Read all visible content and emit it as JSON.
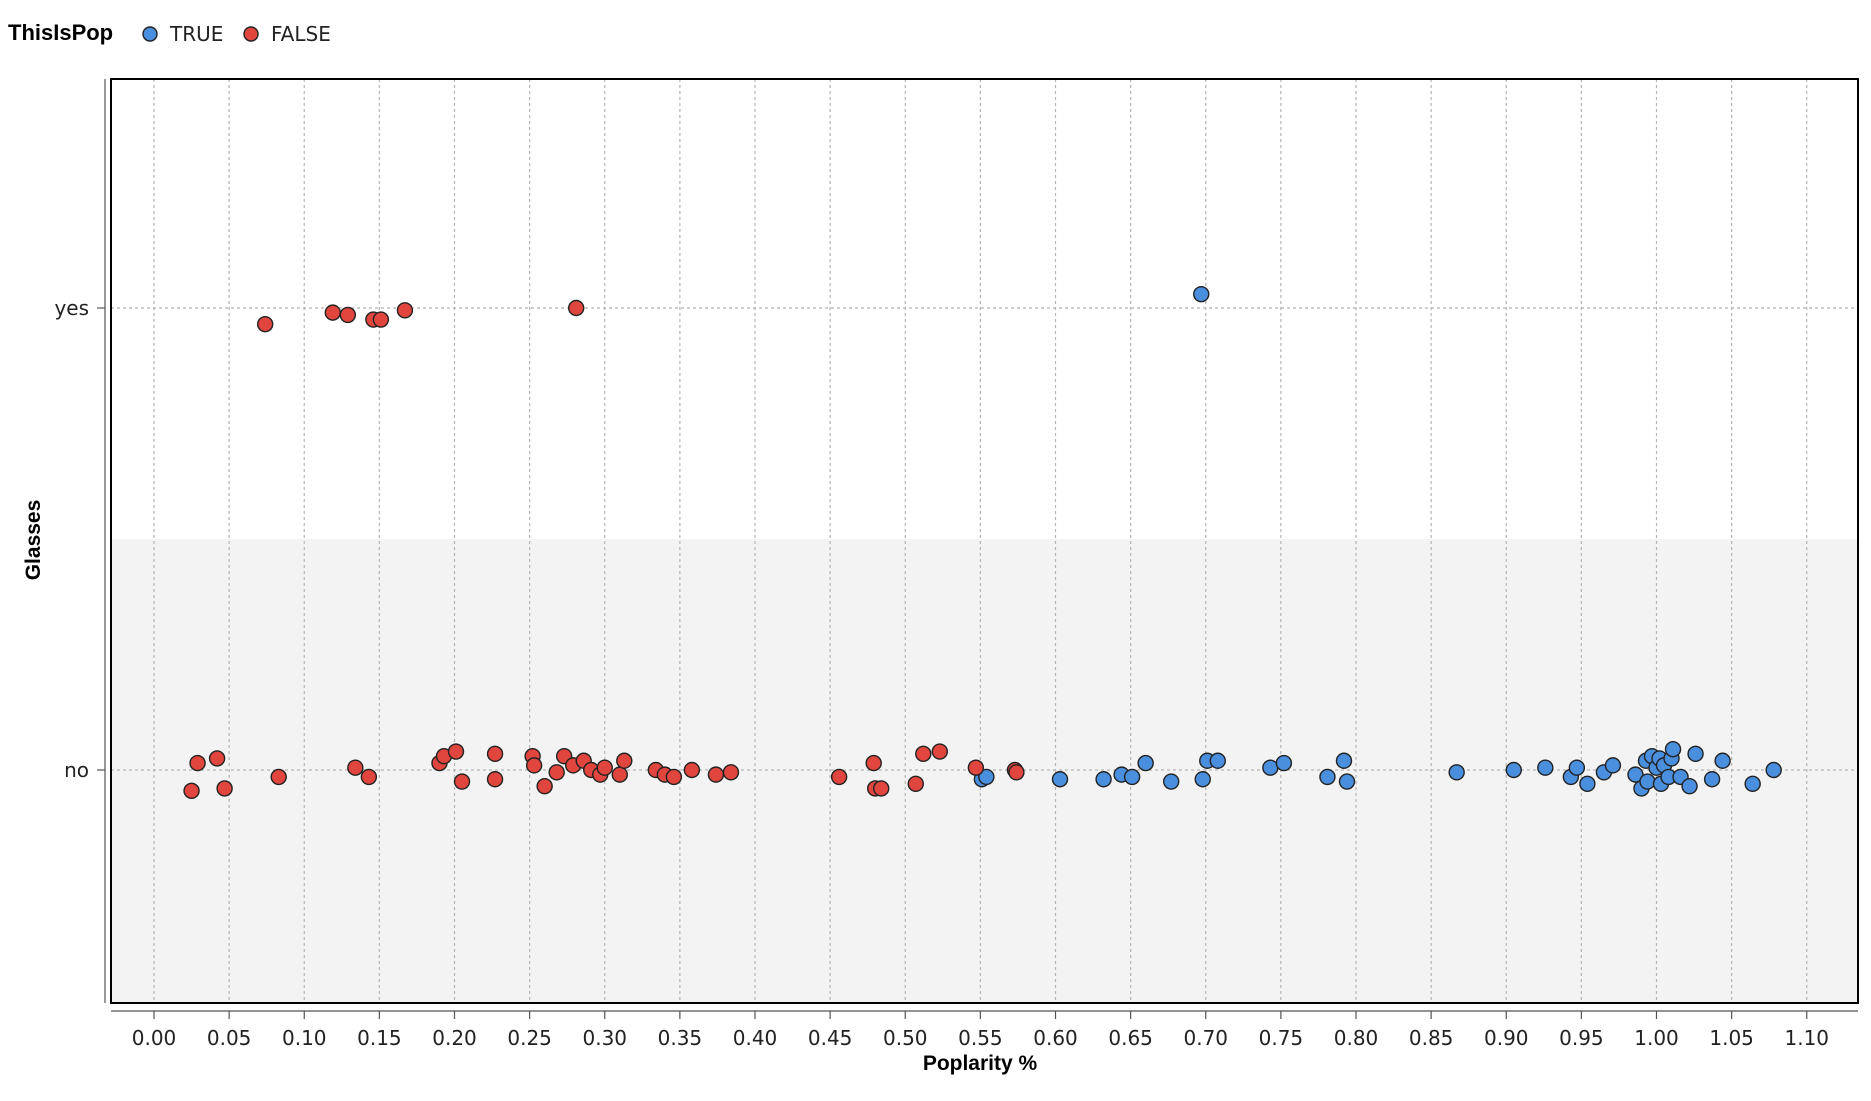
{
  "chart_data": {
    "type": "scatter",
    "title": "",
    "xlabel": "Poplarity %",
    "ylabel": "Glasses",
    "xlim": [
      -0.03,
      1.14
    ],
    "categories_y": [
      "no",
      "yes"
    ],
    "x_ticks": [
      "0.00",
      "0.05",
      "0.10",
      "0.15",
      "0.20",
      "0.25",
      "0.30",
      "0.35",
      "0.40",
      "0.45",
      "0.50",
      "0.55",
      "0.60",
      "0.65",
      "0.70",
      "0.75",
      "0.80",
      "0.85",
      "0.90",
      "0.95",
      "1.00",
      "1.05",
      "1.10"
    ],
    "y_ticks": [
      "yes",
      "no"
    ],
    "grid": true,
    "legend": {
      "title": "ThisIsPop",
      "placement": "top-left",
      "entries": [
        {
          "label": "TRUE",
          "color": "#4a8fde"
        },
        {
          "label": "FALSE",
          "color": "#e0463e"
        }
      ]
    },
    "series": [
      {
        "name": "TRUE",
        "color": "#4a8fde",
        "points": [
          {
            "x": 0.697,
            "y": "yes",
            "jitter": 0.03
          },
          {
            "x": 0.551,
            "y": "no",
            "jitter": -0.02
          },
          {
            "x": 0.554,
            "y": "no",
            "jitter": -0.015
          },
          {
            "x": 0.603,
            "y": "no",
            "jitter": -0.02
          },
          {
            "x": 0.632,
            "y": "no",
            "jitter": -0.02
          },
          {
            "x": 0.644,
            "y": "no",
            "jitter": -0.01
          },
          {
            "x": 0.651,
            "y": "no",
            "jitter": -0.015
          },
          {
            "x": 0.66,
            "y": "no",
            "jitter": 0.015
          },
          {
            "x": 0.677,
            "y": "no",
            "jitter": -0.025
          },
          {
            "x": 0.698,
            "y": "no",
            "jitter": -0.02
          },
          {
            "x": 0.701,
            "y": "no",
            "jitter": 0.02
          },
          {
            "x": 0.708,
            "y": "no",
            "jitter": 0.02
          },
          {
            "x": 0.743,
            "y": "no",
            "jitter": 0.005
          },
          {
            "x": 0.752,
            "y": "no",
            "jitter": 0.015
          },
          {
            "x": 0.781,
            "y": "no",
            "jitter": -0.015
          },
          {
            "x": 0.792,
            "y": "no",
            "jitter": 0.02
          },
          {
            "x": 0.794,
            "y": "no",
            "jitter": -0.025
          },
          {
            "x": 0.867,
            "y": "no",
            "jitter": -0.005
          },
          {
            "x": 0.905,
            "y": "no",
            "jitter": 0.0
          },
          {
            "x": 0.926,
            "y": "no",
            "jitter": 0.005
          },
          {
            "x": 0.943,
            "y": "no",
            "jitter": -0.015
          },
          {
            "x": 0.947,
            "y": "no",
            "jitter": 0.005
          },
          {
            "x": 0.954,
            "y": "no",
            "jitter": -0.03
          },
          {
            "x": 0.965,
            "y": "no",
            "jitter": -0.005
          },
          {
            "x": 0.971,
            "y": "no",
            "jitter": 0.01
          },
          {
            "x": 0.986,
            "y": "no",
            "jitter": -0.01
          },
          {
            "x": 0.99,
            "y": "no",
            "jitter": -0.04
          },
          {
            "x": 0.993,
            "y": "no",
            "jitter": 0.02
          },
          {
            "x": 0.994,
            "y": "no",
            "jitter": -0.025
          },
          {
            "x": 0.997,
            "y": "no",
            "jitter": 0.03
          },
          {
            "x": 1.0,
            "y": "no",
            "jitter": 0.005
          },
          {
            "x": 1.002,
            "y": "no",
            "jitter": 0.025
          },
          {
            "x": 1.003,
            "y": "no",
            "jitter": -0.03
          },
          {
            "x": 1.005,
            "y": "no",
            "jitter": 0.01
          },
          {
            "x": 1.008,
            "y": "no",
            "jitter": -0.015
          },
          {
            "x": 1.01,
            "y": "no",
            "jitter": 0.025
          },
          {
            "x": 1.011,
            "y": "no",
            "jitter": 0.045
          },
          {
            "x": 1.016,
            "y": "no",
            "jitter": -0.015
          },
          {
            "x": 1.022,
            "y": "no",
            "jitter": -0.035
          },
          {
            "x": 1.026,
            "y": "no",
            "jitter": 0.035
          },
          {
            "x": 1.037,
            "y": "no",
            "jitter": -0.02
          },
          {
            "x": 1.044,
            "y": "no",
            "jitter": 0.02
          },
          {
            "x": 1.064,
            "y": "no",
            "jitter": -0.03
          },
          {
            "x": 1.078,
            "y": "no",
            "jitter": 0.0
          }
        ]
      },
      {
        "name": "FALSE",
        "color": "#e0463e",
        "points": [
          {
            "x": 0.074,
            "y": "yes",
            "jitter": -0.035
          },
          {
            "x": 0.119,
            "y": "yes",
            "jitter": -0.01
          },
          {
            "x": 0.129,
            "y": "yes",
            "jitter": -0.015
          },
          {
            "x": 0.146,
            "y": "yes",
            "jitter": -0.025
          },
          {
            "x": 0.151,
            "y": "yes",
            "jitter": -0.025
          },
          {
            "x": 0.167,
            "y": "yes",
            "jitter": -0.005
          },
          {
            "x": 0.281,
            "y": "yes",
            "jitter": 0.0
          },
          {
            "x": 0.025,
            "y": "no",
            "jitter": -0.045
          },
          {
            "x": 0.029,
            "y": "no",
            "jitter": 0.015
          },
          {
            "x": 0.042,
            "y": "no",
            "jitter": 0.025
          },
          {
            "x": 0.047,
            "y": "no",
            "jitter": -0.04
          },
          {
            "x": 0.083,
            "y": "no",
            "jitter": -0.015
          },
          {
            "x": 0.134,
            "y": "no",
            "jitter": 0.005
          },
          {
            "x": 0.143,
            "y": "no",
            "jitter": -0.015
          },
          {
            "x": 0.19,
            "y": "no",
            "jitter": 0.015
          },
          {
            "x": 0.193,
            "y": "no",
            "jitter": 0.03
          },
          {
            "x": 0.201,
            "y": "no",
            "jitter": 0.04
          },
          {
            "x": 0.205,
            "y": "no",
            "jitter": -0.025
          },
          {
            "x": 0.227,
            "y": "no",
            "jitter": 0.035
          },
          {
            "x": 0.227,
            "y": "no",
            "jitter": -0.02
          },
          {
            "x": 0.252,
            "y": "no",
            "jitter": 0.03
          },
          {
            "x": 0.253,
            "y": "no",
            "jitter": 0.01
          },
          {
            "x": 0.26,
            "y": "no",
            "jitter": -0.035
          },
          {
            "x": 0.268,
            "y": "no",
            "jitter": -0.005
          },
          {
            "x": 0.273,
            "y": "no",
            "jitter": 0.03
          },
          {
            "x": 0.279,
            "y": "no",
            "jitter": 0.01
          },
          {
            "x": 0.286,
            "y": "no",
            "jitter": 0.02
          },
          {
            "x": 0.291,
            "y": "no",
            "jitter": 0.0
          },
          {
            "x": 0.297,
            "y": "no",
            "jitter": -0.01
          },
          {
            "x": 0.3,
            "y": "no",
            "jitter": 0.005
          },
          {
            "x": 0.31,
            "y": "no",
            "jitter": -0.01
          },
          {
            "x": 0.313,
            "y": "no",
            "jitter": 0.02
          },
          {
            "x": 0.334,
            "y": "no",
            "jitter": 0.0
          },
          {
            "x": 0.34,
            "y": "no",
            "jitter": -0.01
          },
          {
            "x": 0.346,
            "y": "no",
            "jitter": -0.015
          },
          {
            "x": 0.358,
            "y": "no",
            "jitter": 0.0
          },
          {
            "x": 0.374,
            "y": "no",
            "jitter": -0.01
          },
          {
            "x": 0.384,
            "y": "no",
            "jitter": -0.005
          },
          {
            "x": 0.456,
            "y": "no",
            "jitter": -0.015
          },
          {
            "x": 0.479,
            "y": "no",
            "jitter": 0.015
          },
          {
            "x": 0.48,
            "y": "no",
            "jitter": -0.04
          },
          {
            "x": 0.484,
            "y": "no",
            "jitter": -0.04
          },
          {
            "x": 0.507,
            "y": "no",
            "jitter": -0.03
          },
          {
            "x": 0.512,
            "y": "no",
            "jitter": 0.035
          },
          {
            "x": 0.523,
            "y": "no",
            "jitter": 0.04
          },
          {
            "x": 0.547,
            "y": "no",
            "jitter": 0.005
          },
          {
            "x": 0.573,
            "y": "no",
            "jitter": 0.0
          },
          {
            "x": 0.574,
            "y": "no",
            "jitter": -0.005
          }
        ]
      }
    ]
  }
}
